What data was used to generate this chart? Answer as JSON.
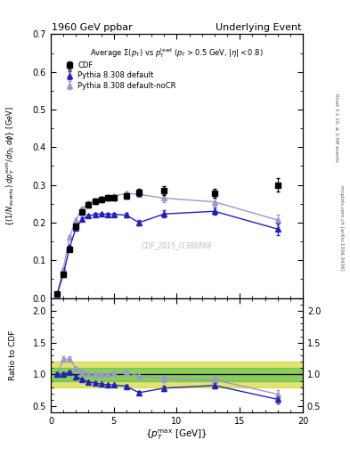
{
  "title_left": "1960 GeV ppbar",
  "title_right": "Underlying Event",
  "panel_title": "Average $\\Sigma(p_{\\rm T})$ vs $p_{\\rm T}^{\\rm lead}$ $(p_{\\rm T} > 0.5$ GeV, $|\\eta| < 0.8)$",
  "watermark": "CDF_2015_I1388868",
  "ylabel_main": "$\\{(1/N_{\\rm events})\\; dp_T^{\\rm sum}/d\\eta_1\\, d\\phi\\}$ [GeV]",
  "ylabel_ratio": "Ratio to CDF",
  "xlabel": "$\\{p_T^{\\rm max}$ [GeV]$\\}$",
  "right_label_top": "Rivet 3.1.10, ≥ 3.5M events",
  "right_label_bot": "mcplots.cern.ch [arXiv:1306.3436]",
  "cdf_x": [
    0.5,
    1.0,
    1.5,
    2.0,
    2.5,
    3.0,
    3.5,
    4.0,
    4.5,
    5.0,
    6.0,
    7.0,
    9.0,
    13.0,
    18.0
  ],
  "cdf_y": [
    0.01,
    0.063,
    0.13,
    0.19,
    0.228,
    0.248,
    0.257,
    0.262,
    0.265,
    0.266,
    0.27,
    0.28,
    0.284,
    0.278,
    0.3
  ],
  "cdf_yerr": [
    0.002,
    0.004,
    0.006,
    0.007,
    0.007,
    0.007,
    0.007,
    0.007,
    0.007,
    0.007,
    0.007,
    0.009,
    0.012,
    0.012,
    0.018
  ],
  "py_def_x": [
    0.5,
    1.0,
    1.5,
    2.0,
    2.5,
    3.0,
    3.5,
    4.0,
    4.5,
    5.0,
    6.0,
    7.0,
    9.0,
    13.0,
    18.0
  ],
  "py_def_y": [
    0.01,
    0.063,
    0.135,
    0.185,
    0.21,
    0.218,
    0.222,
    0.223,
    0.222,
    0.222,
    0.22,
    0.2,
    0.223,
    0.23,
    0.183
  ],
  "py_def_yerr": [
    0.001,
    0.002,
    0.003,
    0.004,
    0.004,
    0.004,
    0.004,
    0.004,
    0.004,
    0.004,
    0.005,
    0.007,
    0.01,
    0.01,
    0.015
  ],
  "py_nocr_x": [
    0.5,
    1.0,
    1.5,
    2.0,
    2.5,
    3.0,
    3.5,
    4.0,
    4.5,
    5.0,
    6.0,
    7.0,
    9.0,
    13.0,
    18.0
  ],
  "py_nocr_y": [
    0.01,
    0.078,
    0.162,
    0.207,
    0.237,
    0.252,
    0.258,
    0.263,
    0.266,
    0.27,
    0.278,
    0.275,
    0.265,
    0.255,
    0.207
  ],
  "py_nocr_yerr": [
    0.001,
    0.002,
    0.004,
    0.004,
    0.004,
    0.004,
    0.004,
    0.004,
    0.004,
    0.004,
    0.005,
    0.007,
    0.01,
    0.01,
    0.015
  ],
  "ratio_py_def_y": [
    1.0,
    1.0,
    1.04,
    0.97,
    0.92,
    0.88,
    0.865,
    0.851,
    0.838,
    0.835,
    0.815,
    0.714,
    0.785,
    0.827,
    0.61
  ],
  "ratio_py_def_yerr": [
    0.04,
    0.03,
    0.025,
    0.02,
    0.018,
    0.016,
    0.015,
    0.015,
    0.015,
    0.015,
    0.02,
    0.03,
    0.045,
    0.045,
    0.065
  ],
  "ratio_py_nocr_y": [
    1.0,
    1.24,
    1.25,
    1.09,
    1.04,
    1.016,
    1.004,
    1.004,
    1.004,
    1.015,
    1.03,
    0.982,
    0.933,
    0.917,
    0.69
  ],
  "ratio_py_nocr_yerr": [
    0.04,
    0.04,
    0.035,
    0.03,
    0.025,
    0.022,
    0.02,
    0.02,
    0.02,
    0.02,
    0.025,
    0.035,
    0.05,
    0.05,
    0.07
  ],
  "green_band": [
    0.9,
    1.1
  ],
  "yellow_band": [
    0.8,
    1.2
  ],
  "ylim_main": [
    0.0,
    0.7
  ],
  "ylim_ratio": [
    0.4,
    2.2
  ],
  "xlim": [
    0.0,
    20.0
  ],
  "color_cdf": "#000000",
  "color_py_def": "#2222bb",
  "color_py_nocr": "#9999cc",
  "color_green": "#44bb44",
  "color_yellow": "#cccc00",
  "bg_color": "#ffffff"
}
